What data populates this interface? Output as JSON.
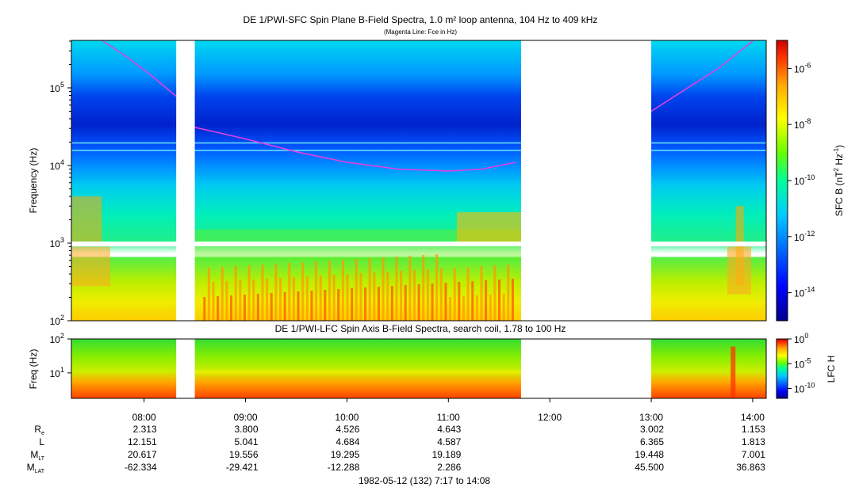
{
  "colors": {
    "background": "#ffffff",
    "fce_line": "#e040e0",
    "colormap": [
      "#00008b",
      "#0000ff",
      "#0066ff",
      "#00ccff",
      "#00ff99",
      "#66ff00",
      "#ffff00",
      "#ffaa00",
      "#ff3300",
      "#cc0000"
    ]
  },
  "time_labels": [
    "08:00",
    "09:00",
    "10:00",
    "11:00",
    "12:00",
    "13:00",
    "14:00"
  ],
  "ephemeris": {
    "row_labels": {
      "re": {
        "main": "R",
        "sub": "e"
      },
      "l": {
        "main": "L",
        "sub": ""
      },
      "mlt": {
        "main": "M",
        "sub": "LT"
      },
      "mlat": {
        "main": "M",
        "sub": "LAT"
      }
    },
    "rows": {
      "re": [
        "2.313",
        "3.800",
        "4.526",
        "4.643",
        "",
        "3.002",
        "1.153"
      ],
      "l": [
        "12.151",
        "5.041",
        "4.684",
        "4.587",
        "",
        "6.365",
        "1.813"
      ],
      "mlt": [
        "20.617",
        "19.556",
        "19.295",
        "19.189",
        "",
        "19.448",
        "7.001"
      ],
      "mlat": [
        "-62.334",
        "-29.421",
        "-12.288",
        "2.286",
        "",
        "45.500",
        "36.863"
      ]
    }
  },
  "footer": "1982-05-12 (132) 7:17 to 14:08",
  "chart_data": [
    {
      "type": "heatmap",
      "title": "DE 1/PWI-SFC  Spin Plane B-Field Spectra, 1.0 m² loop antenna, 104 Hz to 409 kHz",
      "subtitle": "(Magenta Line: Fce in Hz)",
      "ylabel": "Frequency (Hz)",
      "xlabel": "1982-05-12 (132) 7:17 to 14:08",
      "yscale": "log",
      "ylim": [
        100,
        409000
      ],
      "xlim": [
        "07:17",
        "14:08"
      ],
      "y_ticks": [
        {
          "base": "10",
          "exp": "2"
        },
        {
          "base": "10",
          "exp": "3"
        },
        {
          "base": "10",
          "exp": "4"
        },
        {
          "base": "10",
          "exp": "5"
        }
      ],
      "colorbar": {
        "label": "SFC B (nT",
        "label_exp1": "2",
        "label_mid": " Hz",
        "label_exp2": "-1",
        "label_end": ")",
        "scale": "log",
        "range": [
          1e-15,
          1e-05
        ],
        "ticks": [
          {
            "base": "10",
            "exp": "-6"
          },
          {
            "base": "10",
            "exp": "-8"
          },
          {
            "base": "10",
            "exp": "-10"
          },
          {
            "base": "10",
            "exp": "-12"
          },
          {
            "base": "10",
            "exp": "-14"
          }
        ]
      },
      "data_gaps": [
        [
          "08:19",
          "08:30"
        ],
        [
          "11:43",
          "13:00"
        ]
      ],
      "fce_line": {
        "name": "Fce",
        "x": [
          "07:35",
          "07:50",
          "08:05",
          "08:19",
          "08:30",
          "09:00",
          "09:30",
          "10:00",
          "10:30",
          "11:00",
          "11:20",
          "11:40",
          "13:00",
          "13:20",
          "13:40",
          "14:00"
        ],
        "y": [
          440000,
          250000,
          140000,
          78000,
          31000,
          22000,
          15000,
          11000,
          9000,
          8500,
          9000,
          11000,
          50000,
          95000,
          180000,
          400000
        ]
      }
    },
    {
      "type": "heatmap",
      "title": "DE 1/PWI-LFC  Spin Axis B-Field Spectra, search coil, 1.78 to 100 Hz",
      "ylabel": "Freq (Hz)",
      "yscale": "log",
      "ylim": [
        1.78,
        100
      ],
      "xlim": [
        "07:17",
        "14:08"
      ],
      "y_ticks": [
        {
          "base": "10",
          "exp": "1"
        },
        {
          "base": "10",
          "exp": "2"
        }
      ],
      "colorbar": {
        "label": "LFC H",
        "scale": "log",
        "range": [
          1e-12,
          1
        ],
        "ticks": [
          {
            "base": "10",
            "exp": "0"
          },
          {
            "base": "10",
            "exp": "-5"
          },
          {
            "base": "10",
            "exp": "-10"
          }
        ]
      },
      "data_gaps": [
        [
          "08:19",
          "08:30"
        ],
        [
          "11:43",
          "13:00"
        ]
      ]
    }
  ]
}
